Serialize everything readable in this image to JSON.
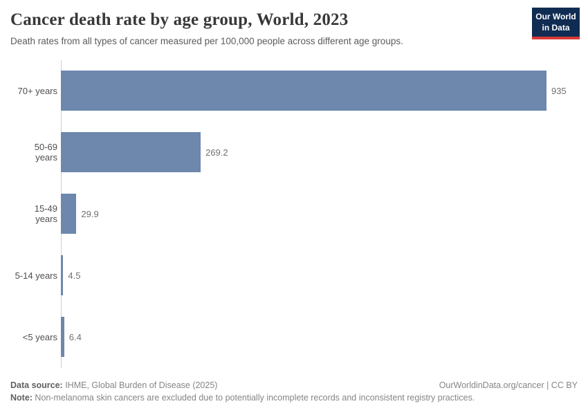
{
  "header": {
    "title": "Cancer death rate by age group, World, 2023",
    "subtitle": "Death rates from all types of cancer measured per 100,000 people across different age groups.",
    "logo": {
      "line1": "Our World",
      "line2": "in Data",
      "background": "#102c52",
      "stripe": "#d93a34"
    }
  },
  "chart_data": {
    "type": "bar",
    "orientation": "horizontal",
    "categories": [
      "70+ years",
      "50-69 years",
      "15-49 years",
      "5-14 years",
      "<5 years"
    ],
    "values": [
      935,
      269.2,
      29.9,
      4.5,
      6.4
    ],
    "value_labels": [
      "935",
      "269.2",
      "29.9",
      "4.5",
      "6.4"
    ],
    "title": "Cancer death rate by age group, World, 2023",
    "xlabel": "",
    "ylabel": "",
    "xlim": [
      0,
      935
    ],
    "grid": false,
    "legend": "none",
    "bar_color": "#6d87ad",
    "axis_color": "#cfcfcf"
  },
  "footer": {
    "data_source_label": "Data source:",
    "data_source_text": " IHME, Global Burden of Disease (2025)",
    "attribution": "OurWorldinData.org/cancer | CC BY",
    "note_label": "Note:",
    "note_text": " Non-melanoma skin cancers are excluded due to potentially incomplete records and inconsistent registry practices."
  }
}
